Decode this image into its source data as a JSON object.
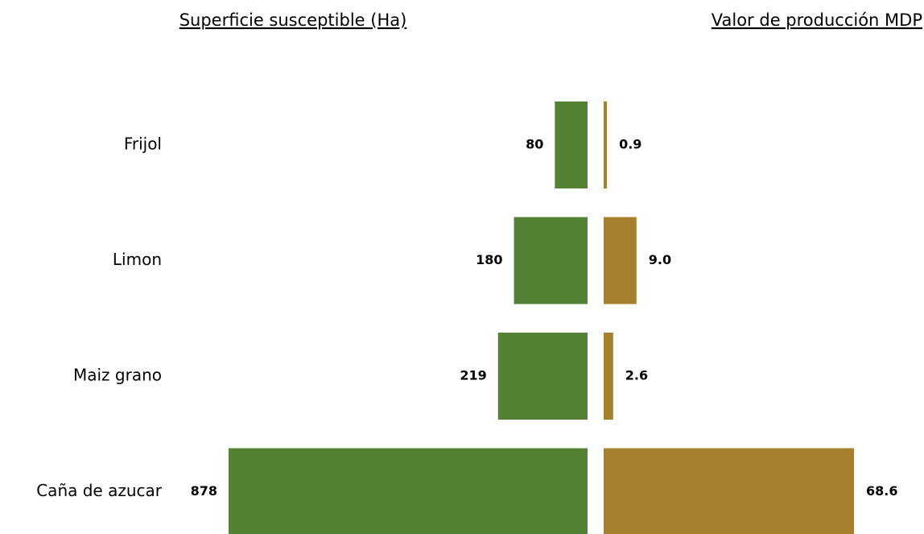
{
  "chart_data": [
    {
      "type": "bar",
      "orientation": "horizontal",
      "direction": "left",
      "title": "Superficie susceptible (Ha)",
      "categories": [
        "Frijol",
        "Limon",
        "Maiz grano",
        "Caña de azucar"
      ],
      "values": [
        80,
        180,
        219,
        878
      ],
      "color": "#548235"
    },
    {
      "type": "bar",
      "orientation": "horizontal",
      "direction": "right",
      "title": "Valor de producción MDP",
      "values": [
        0.9,
        9.0,
        2.6,
        68.6
      ],
      "value_labels": [
        "0.9",
        "9.0",
        "2.6",
        "68.6"
      ],
      "color": "#a67f2e"
    }
  ]
}
